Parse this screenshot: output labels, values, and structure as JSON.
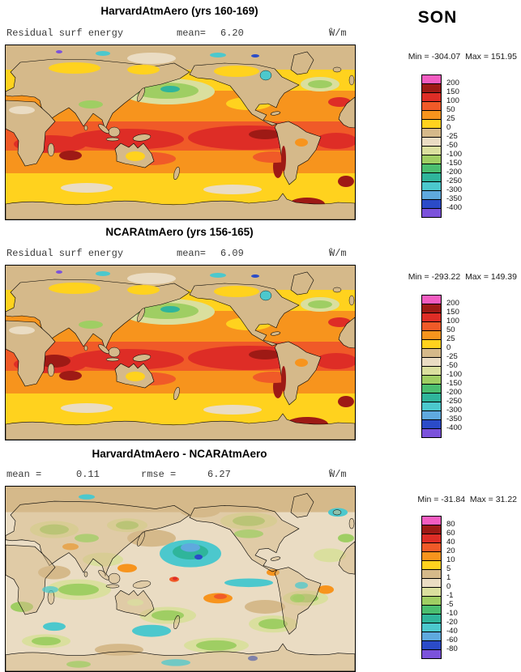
{
  "season_label": "SON",
  "palette": [
    "#F25CC1",
    "#9E1A15",
    "#DE2D26",
    "#F05A28",
    "#F7941D",
    "#FFD21E",
    "#D5B98A",
    "#EADCC3",
    "#DADF9E",
    "#9FCE63",
    "#4BBE70",
    "#2FB59B",
    "#4CC8CD",
    "#5FA9DE",
    "#2B4BC8",
    "#7B52DB"
  ],
  "units": {
    "base": "W/m",
    "exp": "2"
  },
  "panels": [
    {
      "title": "HarvardAtmAero (yrs 160-169)",
      "var_label": "Residual surf energy",
      "mean_label": "mean=",
      "mean_value": "6.20",
      "min_label": "Min =",
      "min_value": "-304.07",
      "max_label": "Max =",
      "max_value": "151.95",
      "colorbar_ticks": [
        "200",
        "150",
        "100",
        "50",
        "25",
        "0",
        "-25",
        "-50",
        "-100",
        "-150",
        "-200",
        "-250",
        "-300",
        "-350",
        "-400"
      ]
    },
    {
      "title": "NCARAtmAero (yrs 156-165)",
      "var_label": "Residual surf energy",
      "mean_label": "mean=",
      "mean_value": "6.09",
      "min_label": "Min =",
      "min_value": "-293.22",
      "max_label": "Max =",
      "max_value": "149.39",
      "colorbar_ticks": [
        "200",
        "150",
        "100",
        "50",
        "25",
        "0",
        "-25",
        "-50",
        "-100",
        "-150",
        "-200",
        "-250",
        "-300",
        "-350",
        "-400"
      ]
    },
    {
      "title": "HarvardAtmAero - NCARAtmAero",
      "mean_label": "mean =",
      "mean_value": "0.11",
      "rmse_label": "rmse =",
      "rmse_value": "6.27",
      "min_label": "Min =",
      "min_value": "-31.84",
      "max_label": "Max =",
      "max_value": "31.22",
      "colorbar_ticks": [
        "80",
        "60",
        "40",
        "20",
        "10",
        "5",
        "1",
        "0",
        "-1",
        "-5",
        "-10",
        "-20",
        "-40",
        "-60",
        "-80"
      ]
    }
  ],
  "chart_data": [
    {
      "type": "heatmap",
      "title": "HarvardAtmAero (yrs 160-169)",
      "variable": "Residual surf energy",
      "season": "SON",
      "units": "W/m^2",
      "mean": 6.2,
      "min": -304.07,
      "max": 151.95,
      "contour_levels": [
        200,
        150,
        100,
        50,
        25,
        0,
        -25,
        -50,
        -100,
        -150,
        -200,
        -250,
        -300,
        -350,
        -400
      ],
      "legend_position": "right"
    },
    {
      "type": "heatmap",
      "title": "NCARAtmAero (yrs 156-165)",
      "variable": "Residual surf energy",
      "season": "SON",
      "units": "W/m^2",
      "mean": 6.09,
      "min": -293.22,
      "max": 149.39,
      "contour_levels": [
        200,
        150,
        100,
        50,
        25,
        0,
        -25,
        -50,
        -100,
        -150,
        -200,
        -250,
        -300,
        -350,
        -400
      ],
      "legend_position": "right"
    },
    {
      "type": "heatmap",
      "title": "HarvardAtmAero - NCARAtmAero",
      "season": "SON",
      "units": "W/m^2",
      "mean": 0.11,
      "rmse": 6.27,
      "min": -31.84,
      "max": 31.22,
      "contour_levels": [
        80,
        60,
        40,
        20,
        10,
        5,
        1,
        0,
        -1,
        -5,
        -10,
        -20,
        -40,
        -60,
        -80
      ],
      "legend_position": "right"
    }
  ]
}
